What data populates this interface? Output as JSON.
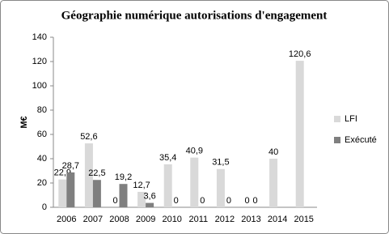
{
  "chart_data": {
    "type": "bar",
    "title": "Géographie numérique autorisations d'engagement",
    "y_label": "M€",
    "categories": [
      "2006",
      "2007",
      "2008",
      "2009",
      "2010",
      "2011",
      "2012",
      "2013",
      "2014",
      "2015"
    ],
    "series": [
      {
        "name": "LFI",
        "color": "#d9d9d9",
        "values": [
          22.9,
          52.6,
          0,
          12.7,
          35.4,
          40.9,
          31.5,
          0,
          40,
          120.6
        ],
        "value_labels": [
          "22,9",
          "52,6",
          "0",
          "12,7",
          "35,4",
          "40,9",
          "31,5",
          "0",
          "40",
          "120,6"
        ]
      },
      {
        "name": "Exécuté",
        "color": "#7f7f7f",
        "values": [
          28.7,
          22.5,
          19.2,
          3.6,
          0,
          0,
          0,
          0,
          null,
          null
        ],
        "value_labels": [
          "28,7",
          "22,5",
          "19,2",
          "3,6",
          "0",
          "0",
          "0",
          "0",
          null,
          null
        ]
      }
    ],
    "ylim": [
      0,
      140
    ],
    "yticks": [
      0,
      20,
      40,
      60,
      80,
      100,
      120,
      140
    ],
    "grid": false,
    "legend": "right"
  }
}
